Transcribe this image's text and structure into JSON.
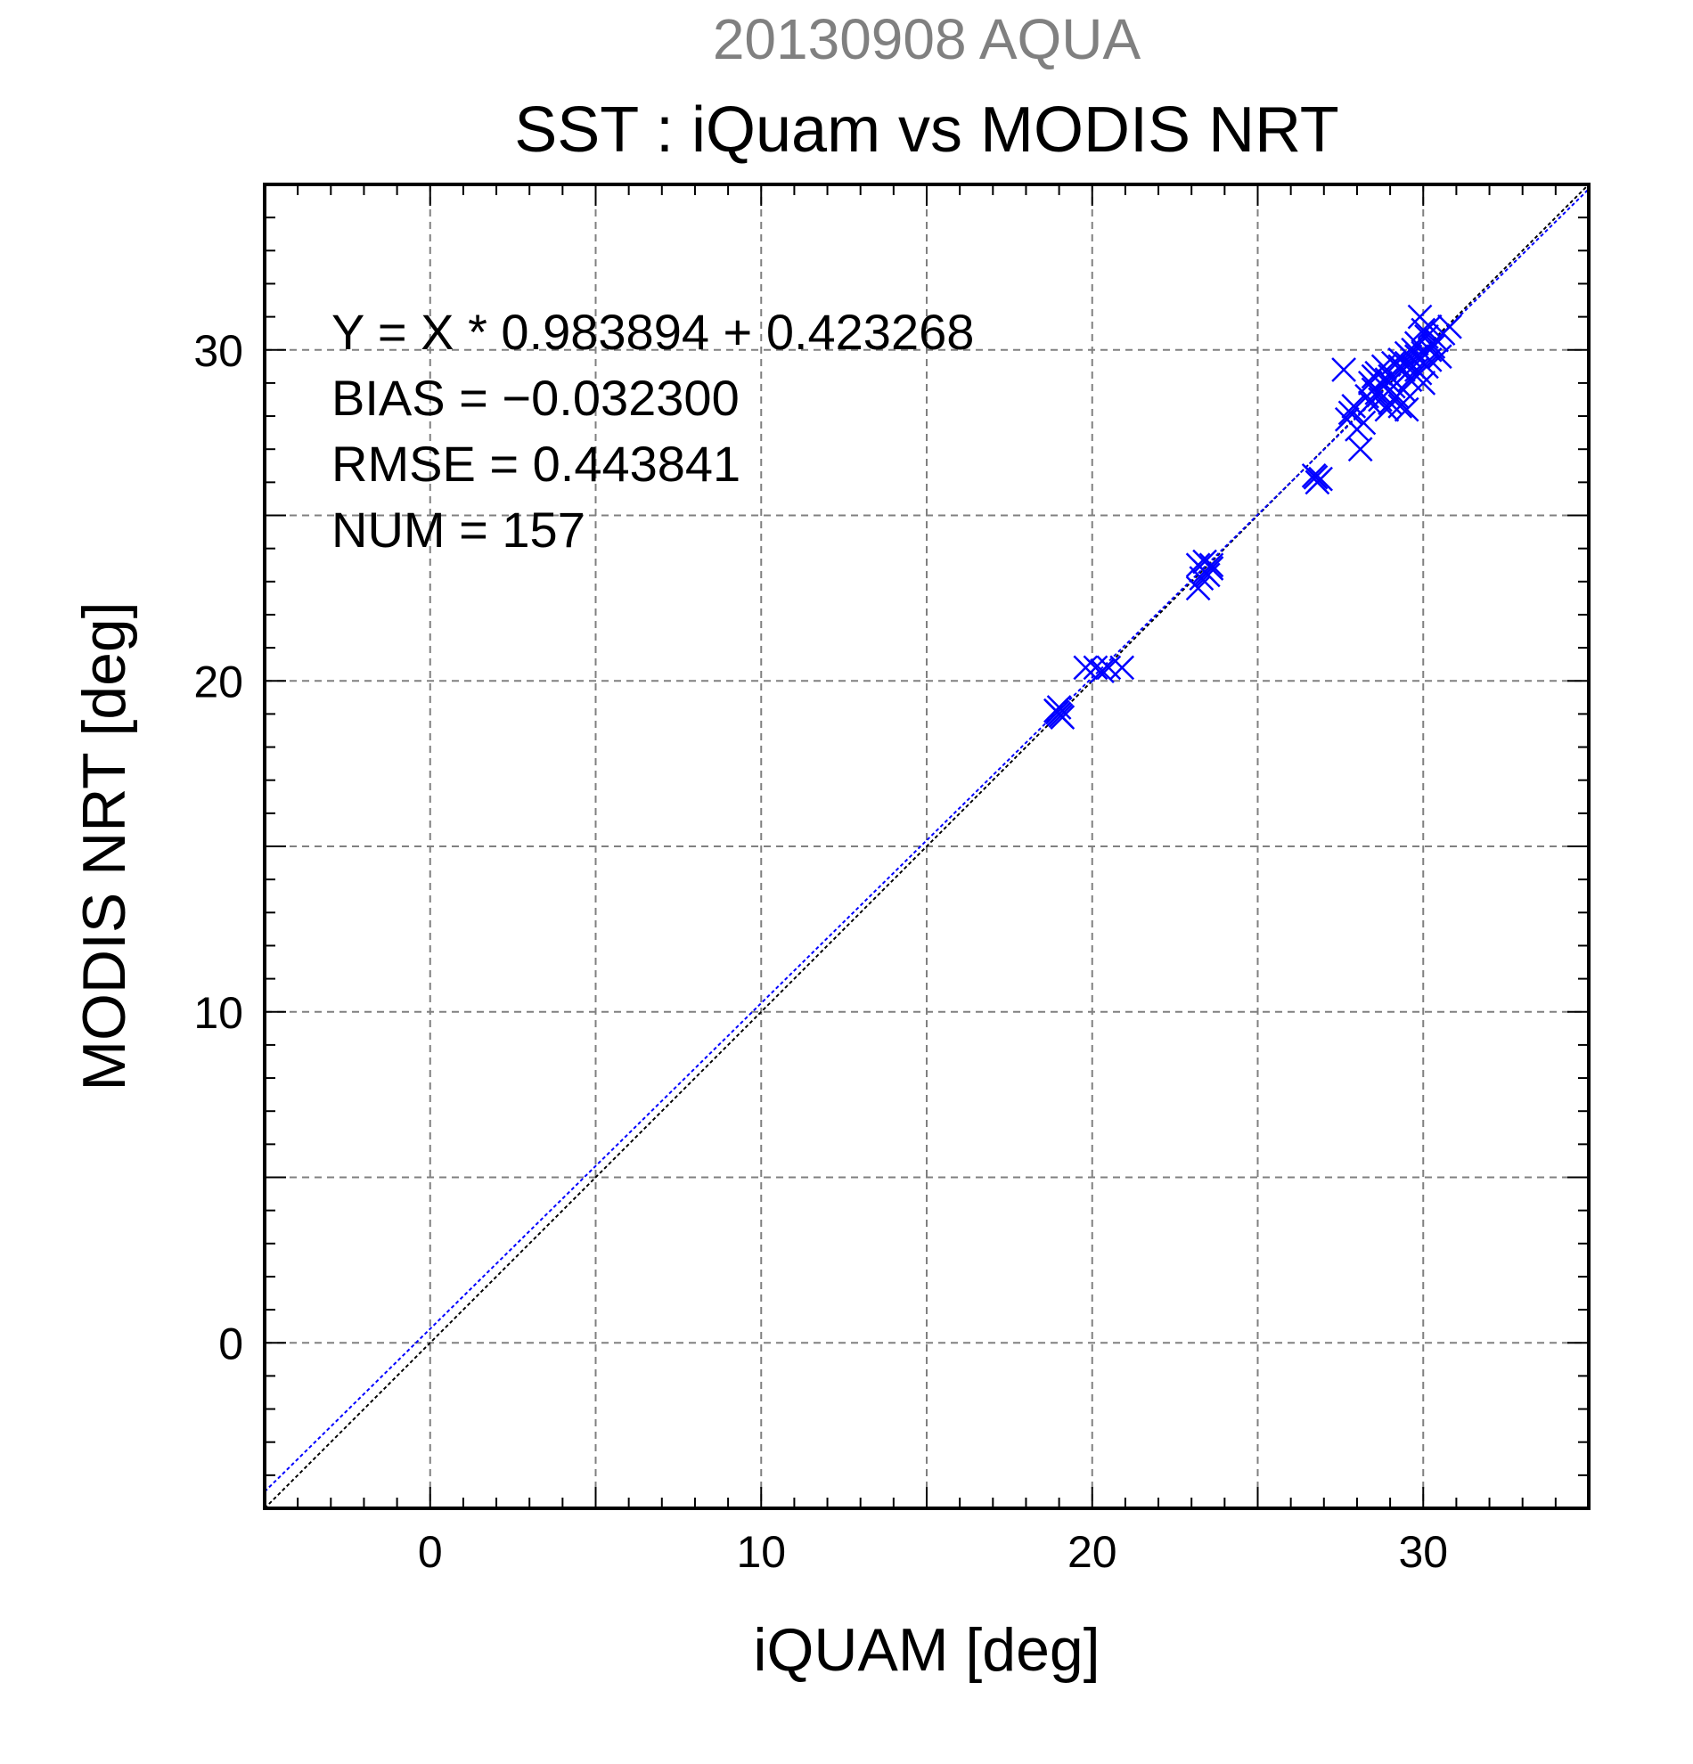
{
  "chart_data": {
    "type": "scatter",
    "suptitle": "20130908 AQUA",
    "title": "SST : iQuam vs MODIS NRT",
    "xlabel": "iQUAM [deg]",
    "ylabel": "MODIS NRT [deg]",
    "xlim": [
      -5,
      35
    ],
    "ylim": [
      -5,
      35
    ],
    "xticks": [
      0,
      10,
      20,
      30
    ],
    "yticks": [
      0,
      10,
      20,
      30
    ],
    "grid": true,
    "annotations": [
      "Y = X * 0.983894 + 0.423268",
      "BIAS = −0.032300",
      "RMSE = 0.443841",
      "NUM = 157"
    ],
    "regression": {
      "slope": 0.983894,
      "intercept": 0.423268
    },
    "marker_color": "#0000ff",
    "fit_line_color": "#0000ff",
    "identity_line_color": "#000000",
    "points": [
      [
        18.9,
        19.1
      ],
      [
        19.0,
        19.0
      ],
      [
        19.1,
        18.9
      ],
      [
        19.0,
        19.2
      ],
      [
        18.95,
        19.05
      ],
      [
        19.05,
        18.95
      ],
      [
        19.8,
        20.4
      ],
      [
        20.1,
        20.4
      ],
      [
        20.5,
        20.4
      ],
      [
        20.9,
        20.4
      ],
      [
        20.3,
        20.3
      ],
      [
        23.2,
        23.5
      ],
      [
        23.4,
        23.6
      ],
      [
        23.3,
        23.1
      ],
      [
        23.6,
        23.4
      ],
      [
        23.5,
        23.2
      ],
      [
        23.2,
        22.8
      ],
      [
        23.4,
        23.3
      ],
      [
        23.6,
        23.5
      ],
      [
        26.7,
        26.2
      ],
      [
        26.8,
        26.0
      ],
      [
        26.9,
        26.1
      ],
      [
        26.75,
        26.15
      ],
      [
        27.6,
        29.4
      ],
      [
        27.8,
        28.1
      ],
      [
        28.0,
        27.6
      ],
      [
        28.2,
        27.8
      ],
      [
        28.1,
        27.0
      ],
      [
        27.9,
        28.3
      ],
      [
        27.7,
        27.9
      ],
      [
        28.3,
        28.6
      ],
      [
        28.4,
        29.0
      ],
      [
        28.5,
        28.8
      ],
      [
        28.6,
        29.3
      ],
      [
        28.7,
        28.5
      ],
      [
        28.8,
        29.5
      ],
      [
        28.9,
        29.1
      ],
      [
        28.4,
        28.4
      ],
      [
        28.6,
        28.7
      ],
      [
        28.8,
        28.9
      ],
      [
        29.0,
        28.4
      ],
      [
        29.1,
        29.6
      ],
      [
        29.2,
        29.0
      ],
      [
        29.3,
        28.3
      ],
      [
        28.9,
        28.2
      ],
      [
        29.0,
        29.2
      ],
      [
        29.2,
        28.6
      ],
      [
        29.4,
        29.4
      ],
      [
        29.5,
        28.2
      ],
      [
        29.6,
        29.8
      ],
      [
        29.7,
        29.5
      ],
      [
        29.8,
        30.2
      ],
      [
        29.9,
        29.3
      ],
      [
        30.0,
        29.9
      ],
      [
        30.1,
        30.4
      ],
      [
        30.2,
        29.7
      ],
      [
        30.3,
        30.1
      ],
      [
        29.9,
        31.0
      ],
      [
        30.0,
        29.0
      ],
      [
        30.2,
        30.0
      ],
      [
        30.4,
        30.3
      ],
      [
        30.6,
        30.5
      ],
      [
        30.8,
        30.7
      ],
      [
        30.5,
        29.8
      ],
      [
        30.1,
        29.5
      ],
      [
        29.5,
        29.6
      ],
      [
        29.3,
        29.7
      ],
      [
        29.6,
        29.1
      ],
      [
        29.8,
        29.4
      ],
      [
        29.4,
        28.8
      ],
      [
        29.7,
        30.0
      ],
      [
        30.0,
        30.6
      ],
      [
        28.5,
        29.2
      ],
      [
        28.7,
        29.0
      ],
      [
        29.1,
        28.9
      ],
      [
        29.3,
        29.5
      ],
      [
        29.5,
        29.9
      ],
      [
        29.8,
        29.8
      ],
      [
        30.2,
        30.7
      ]
    ]
  }
}
